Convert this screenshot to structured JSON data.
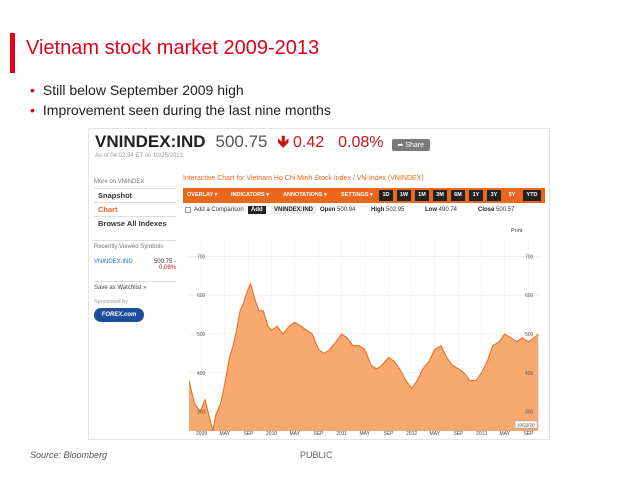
{
  "slide": {
    "title": "Vietnam stock market 2009-2013",
    "bullets": [
      "Still below September 2009 high",
      "Improvement seen during the last nine months"
    ],
    "source": "Source: Bloomberg",
    "classification": "PUBLIC",
    "accent_color": "#e3001b"
  },
  "quote": {
    "ticker": "VNINDEX:IND",
    "price": "500.75",
    "change_icon": "down-arrow-icon",
    "change": "0.42",
    "change_pct": "0.08%",
    "share_label": "Share",
    "as_of": "As of 04:02:34 ET on 10/25/2013.",
    "down_color": "#c8151b"
  },
  "left_panel": {
    "heading": "More on VNINDEX",
    "items": [
      "Snapshot",
      "Chart",
      "Browse All Indexes"
    ],
    "active_item": "Chart",
    "recent_heading": "Recently Viewed Symbols",
    "recent_symbol": "VNINDEX:IND",
    "recent_value": "500.75 -",
    "recent_change": "0.08%",
    "watchlist": "Save as Watchlist »",
    "sponsored": "Sponsored by",
    "sponsor_logo": "FOREX.com"
  },
  "chart_panel": {
    "title": "Interactive Chart for Vietnam Ho Chi Minh Stock Index / VN-Index (VNINDEX)",
    "menus": [
      "OVERLAY ▾",
      "INDICATORS ▾",
      "ANNOTATIONS ▾",
      "SETTINGS ▾"
    ],
    "ranges": [
      "1D",
      "1W",
      "1M",
      "3M",
      "6M",
      "1Y",
      "3Y",
      "5Y",
      "YTD"
    ],
    "selected_range": "5Y",
    "add_comparison": "Add a Comparison",
    "add_label": "Add",
    "symbol": "VNINDEX:IND",
    "open_label": "Open",
    "open": "500.94",
    "high_label": "High",
    "high": "502.95",
    "low_label": "Low",
    "low": "490.74",
    "close_label": "Close",
    "close": "500.57",
    "print_label": "Print",
    "accent_color": "#e9681e"
  },
  "chart_data": {
    "type": "area",
    "title": "",
    "xlabel": "",
    "ylabel": "",
    "ylim": [
      250,
      750
    ],
    "yticks": [
      300,
      400,
      500,
      600,
      700
    ],
    "grid": true,
    "fill_color": "#f7a96f",
    "line_color": "#e9681e",
    "end_label": "10/22/20",
    "x_ticks": [
      {
        "label": "2009",
        "t": 2009.0
      },
      {
        "label": "MAY",
        "t": 2009.33
      },
      {
        "label": "SEP",
        "t": 2009.67
      },
      {
        "label": "2010",
        "t": 2010.0
      },
      {
        "label": "MAY",
        "t": 2010.33
      },
      {
        "label": "SEP",
        "t": 2010.67
      },
      {
        "label": "2011",
        "t": 2011.0
      },
      {
        "label": "MAY",
        "t": 2011.33
      },
      {
        "label": "SEP",
        "t": 2011.67
      },
      {
        "label": "2012",
        "t": 2012.0
      },
      {
        "label": "MAY",
        "t": 2012.33
      },
      {
        "label": "SEP",
        "t": 2012.67
      },
      {
        "label": "2013",
        "t": 2013.0
      },
      {
        "label": "MAY",
        "t": 2013.33
      },
      {
        "label": "SEP",
        "t": 2013.67
      }
    ],
    "x": [
      2008.82,
      2008.9,
      2008.98,
      2009.05,
      2009.12,
      2009.16,
      2009.2,
      2009.27,
      2009.33,
      2009.4,
      2009.45,
      2009.5,
      2009.55,
      2009.6,
      2009.65,
      2009.7,
      2009.76,
      2009.82,
      2009.88,
      2009.95,
      2010.0,
      2010.08,
      2010.16,
      2010.25,
      2010.33,
      2010.42,
      2010.5,
      2010.58,
      2010.67,
      2010.75,
      2010.83,
      2010.92,
      2011.0,
      2011.08,
      2011.16,
      2011.25,
      2011.33,
      2011.42,
      2011.5,
      2011.58,
      2011.67,
      2011.75,
      2011.83,
      2011.92,
      2012.0,
      2012.08,
      2012.16,
      2012.25,
      2012.33,
      2012.42,
      2012.5,
      2012.58,
      2012.67,
      2012.75,
      2012.83,
      2012.92,
      2013.0,
      2013.08,
      2013.16,
      2013.25,
      2013.33,
      2013.42,
      2013.5,
      2013.58,
      2013.67,
      2013.75,
      2013.81
    ],
    "values": [
      380,
      320,
      300,
      330,
      280,
      250,
      290,
      320,
      370,
      440,
      470,
      510,
      560,
      580,
      610,
      630,
      590,
      560,
      560,
      520,
      510,
      520,
      500,
      520,
      530,
      520,
      510,
      500,
      460,
      450,
      460,
      480,
      500,
      490,
      470,
      470,
      460,
      420,
      410,
      420,
      440,
      430,
      410,
      380,
      360,
      380,
      410,
      430,
      460,
      470,
      440,
      420,
      410,
      400,
      380,
      380,
      400,
      430,
      470,
      480,
      500,
      490,
      480,
      490,
      480,
      490,
      500
    ]
  }
}
